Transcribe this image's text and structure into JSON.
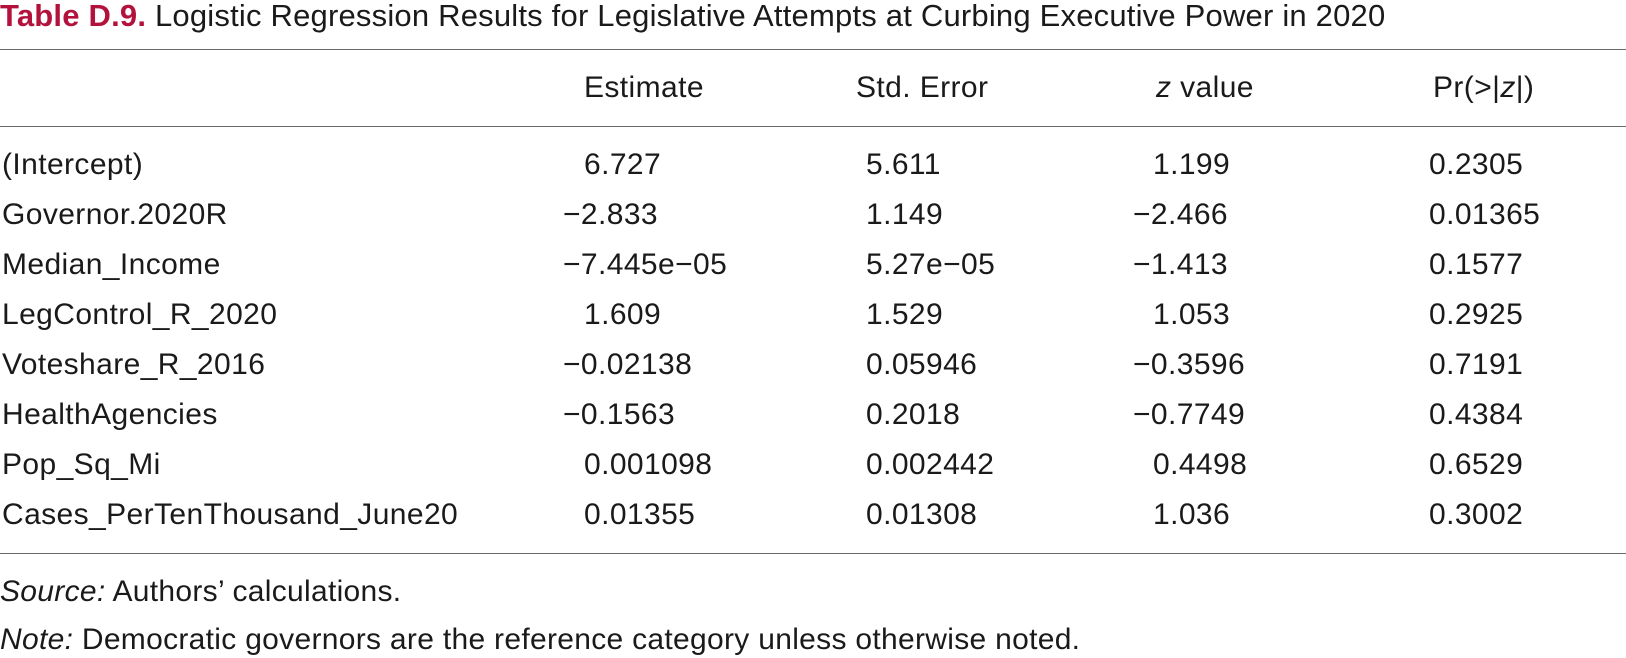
{
  "caption": {
    "label": "Table D.9.",
    "title": "Logistic Regression Results for Legislative Attempts at Curbing Executive Power in 2020"
  },
  "headers": {
    "estimate": "Estimate",
    "std_error": "Std. Error",
    "z_value_var": "z",
    "z_value_rest": " value",
    "p_prefix": "Pr(>|",
    "p_var": "z",
    "p_suffix": "|)"
  },
  "rows": [
    {
      "term": "(Intercept)",
      "estimate": "6.727",
      "std_error": "5.611",
      "z_value": "1.199",
      "p_value": "0.2305"
    },
    {
      "term": "Governor.2020R",
      "estimate": "−2.833",
      "std_error": "1.149",
      "z_value": "−2.466",
      "p_value": "0.01365"
    },
    {
      "term": "Median_Income",
      "estimate": "−7.445e−05",
      "std_error": "5.27e−05",
      "z_value": "−1.413",
      "p_value": "0.1577"
    },
    {
      "term": "LegControl_R_2020",
      "estimate": "1.609",
      "std_error": "1.529",
      "z_value": "1.053",
      "p_value": "0.2925"
    },
    {
      "term": "Voteshare_R_2016",
      "estimate": "−0.02138",
      "std_error": "0.05946",
      "z_value": "−0.3596",
      "p_value": "0.7191"
    },
    {
      "term": "HealthAgencies",
      "estimate": "−0.1563",
      "std_error": "0.2018",
      "z_value": "−0.7749",
      "p_value": "0.4384"
    },
    {
      "term": "Pop_Sq_Mi",
      "estimate": "0.001098",
      "std_error": "0.002442",
      "z_value": "0.4498",
      "p_value": "0.6529"
    },
    {
      "term": "Cases_PerTenThousand_June20",
      "estimate": "0.01355",
      "std_error": "0.01308",
      "z_value": "1.036",
      "p_value": "0.3002"
    }
  ],
  "footnotes": {
    "source_label": "Source:",
    "source_text": " Authors’ calculations.",
    "note_label": "Note:",
    "note_text": " Democratic governors are the reference category unless otherwise noted."
  }
}
